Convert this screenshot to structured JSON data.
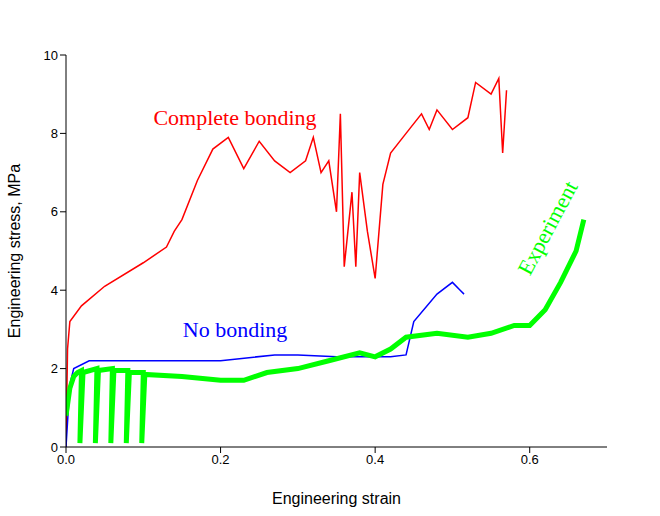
{
  "chart_data": {
    "type": "line",
    "x_label": "Engineering strain",
    "y_label": "Engineering stress, MPa",
    "xlim": [
      0,
      0.7
    ],
    "xticks": [
      {
        "value": 0,
        "label": "0.0"
      },
      0.2,
      0.4,
      0.6
    ],
    "ylim": [
      0,
      10
    ],
    "yticks": [
      0,
      2,
      4,
      6,
      8,
      10
    ],
    "grid": false,
    "series": [
      {
        "name": "Complete bonding",
        "color": "#ff0000",
        "x": [
          0,
          0.002,
          0.005,
          0.02,
          0.05,
          0.1,
          0.13,
          0.14,
          0.15,
          0.17,
          0.19,
          0.21,
          0.23,
          0.25,
          0.27,
          0.29,
          0.31,
          0.32,
          0.33,
          0.34,
          0.35,
          0.355,
          0.36,
          0.37,
          0.375,
          0.38,
          0.39,
          0.4,
          0.41,
          0.42,
          0.44,
          0.46,
          0.47,
          0.48,
          0.5,
          0.52,
          0.53,
          0.55,
          0.56,
          0.565,
          0.57
        ],
        "values": [
          0,
          2.5,
          3.2,
          3.6,
          4.1,
          4.7,
          5.1,
          5.5,
          5.8,
          6.8,
          7.6,
          7.9,
          7.1,
          7.8,
          7.3,
          7.0,
          7.3,
          7.9,
          7.0,
          7.3,
          6.0,
          8.5,
          4.6,
          6.5,
          4.6,
          7.0,
          5.5,
          4.3,
          6.7,
          7.5,
          8.0,
          8.5,
          8.1,
          8.6,
          8.1,
          8.4,
          9.3,
          9.0,
          9.4,
          7.5,
          9.1
        ]
      },
      {
        "name": "No bonding",
        "color": "#0000ff",
        "x": [
          0,
          0.005,
          0.01,
          0.03,
          0.1,
          0.2,
          0.27,
          0.3,
          0.35,
          0.42,
          0.44,
          0.45,
          0.48,
          0.5,
          0.51,
          0.515
        ],
        "values": [
          0,
          1.6,
          2.0,
          2.2,
          2.2,
          2.2,
          2.35,
          2.35,
          2.3,
          2.3,
          2.35,
          3.2,
          3.9,
          4.2,
          4.0,
          3.9
        ]
      },
      {
        "name": "Experiment",
        "color": "#00ff00",
        "x": [
          0,
          0.005,
          0.01,
          0.015,
          0.02,
          0.018,
          0.022,
          0.04,
          0.038,
          0.042,
          0.06,
          0.058,
          0.062,
          0.08,
          0.078,
          0.082,
          0.1,
          0.098,
          0.102,
          0.15,
          0.2,
          0.23,
          0.26,
          0.3,
          0.34,
          0.38,
          0.4,
          0.42,
          0.44,
          0.48,
          0.52,
          0.55,
          0.58,
          0.6,
          0.62,
          0.64,
          0.66,
          0.67
        ],
        "values": [
          0.8,
          1.5,
          1.8,
          1.9,
          1.95,
          0.1,
          1.9,
          2.0,
          0.1,
          1.95,
          2.0,
          0.1,
          1.95,
          1.95,
          0.1,
          1.9,
          1.9,
          0.1,
          1.85,
          1.8,
          1.7,
          1.7,
          1.9,
          2.0,
          2.2,
          2.4,
          2.3,
          2.5,
          2.8,
          2.9,
          2.8,
          2.9,
          3.1,
          3.1,
          3.5,
          4.2,
          5.0,
          5.8
        ]
      }
    ]
  }
}
